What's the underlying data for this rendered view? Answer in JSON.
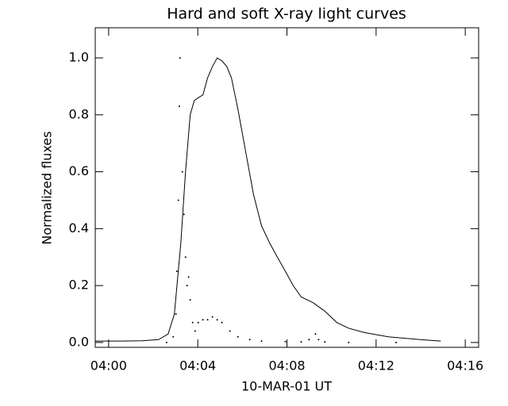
{
  "chart_data": {
    "type": "line",
    "title": "Hard and soft X-ray light curves",
    "x_label": "10-MAR-01   UT",
    "y_label": "Normalized fluxes",
    "xlim": [
      239.4,
      256.6
    ],
    "xticks": [
      {
        "value": 240,
        "label": "04:00"
      },
      {
        "value": 244,
        "label": "04:04"
      },
      {
        "value": 248,
        "label": "04:08"
      },
      {
        "value": 252,
        "label": "04:12"
      },
      {
        "value": 256,
        "label": "04:16"
      }
    ],
    "ylim": [
      -0.017,
      1.106
    ],
    "yticks": [
      {
        "value": 0,
        "label": "0.0"
      },
      0.2,
      0.4,
      0.6,
      0.8,
      {
        "value": 1,
        "label": "1.0"
      }
    ],
    "series": [
      {
        "color": "#000000",
        "style": "solid",
        "x": [
          239.4,
          240.5,
          241.5,
          242.24,
          242.67,
          242.95,
          243.24,
          243.45,
          243.66,
          243.84,
          244.02,
          244.23,
          244.44,
          244.66,
          244.87,
          245.08,
          245.3,
          245.51,
          245.8,
          246.15,
          246.5,
          246.86,
          247.22,
          247.57,
          247.93,
          248.28,
          248.64,
          249.17,
          249.7,
          250.24,
          250.77,
          251.48,
          252.55,
          253.97,
          254.9
        ],
        "values": [
          0.005,
          0.005,
          0.006,
          0.01,
          0.03,
          0.1,
          0.35,
          0.6,
          0.8,
          0.85,
          0.86,
          0.87,
          0.93,
          0.97,
          1.0,
          0.99,
          0.97,
          0.93,
          0.82,
          0.67,
          0.52,
          0.41,
          0.35,
          0.3,
          0.25,
          0.2,
          0.16,
          0.14,
          0.11,
          0.07,
          0.05,
          0.035,
          0.02,
          0.01,
          0.005
        ]
      },
      {
        "color": "#000000",
        "style": "dots",
        "x": [
          242.6,
          242.9,
          243.02,
          243.06,
          243.13,
          243.17,
          243.2,
          243.31,
          243.38,
          243.45,
          243.52,
          243.59,
          243.66,
          243.77,
          243.88,
          244.02,
          244.23,
          244.44,
          244.66,
          244.87,
          245.08,
          245.44,
          245.8,
          246.33,
          246.86,
          247.93,
          248.64,
          248.99,
          249.28,
          249.42,
          249.7,
          250.77,
          252.9
        ],
        "values": [
          0.0,
          0.02,
          0.1,
          0.25,
          0.5,
          0.83,
          1.0,
          0.6,
          0.45,
          0.3,
          0.2,
          0.23,
          0.15,
          0.07,
          0.04,
          0.07,
          0.08,
          0.08,
          0.09,
          0.08,
          0.07,
          0.04,
          0.02,
          0.01,
          0.005,
          0.003,
          0.002,
          0.01,
          0.03,
          0.01,
          0.002,
          0.0,
          0.0
        ]
      }
    ]
  }
}
